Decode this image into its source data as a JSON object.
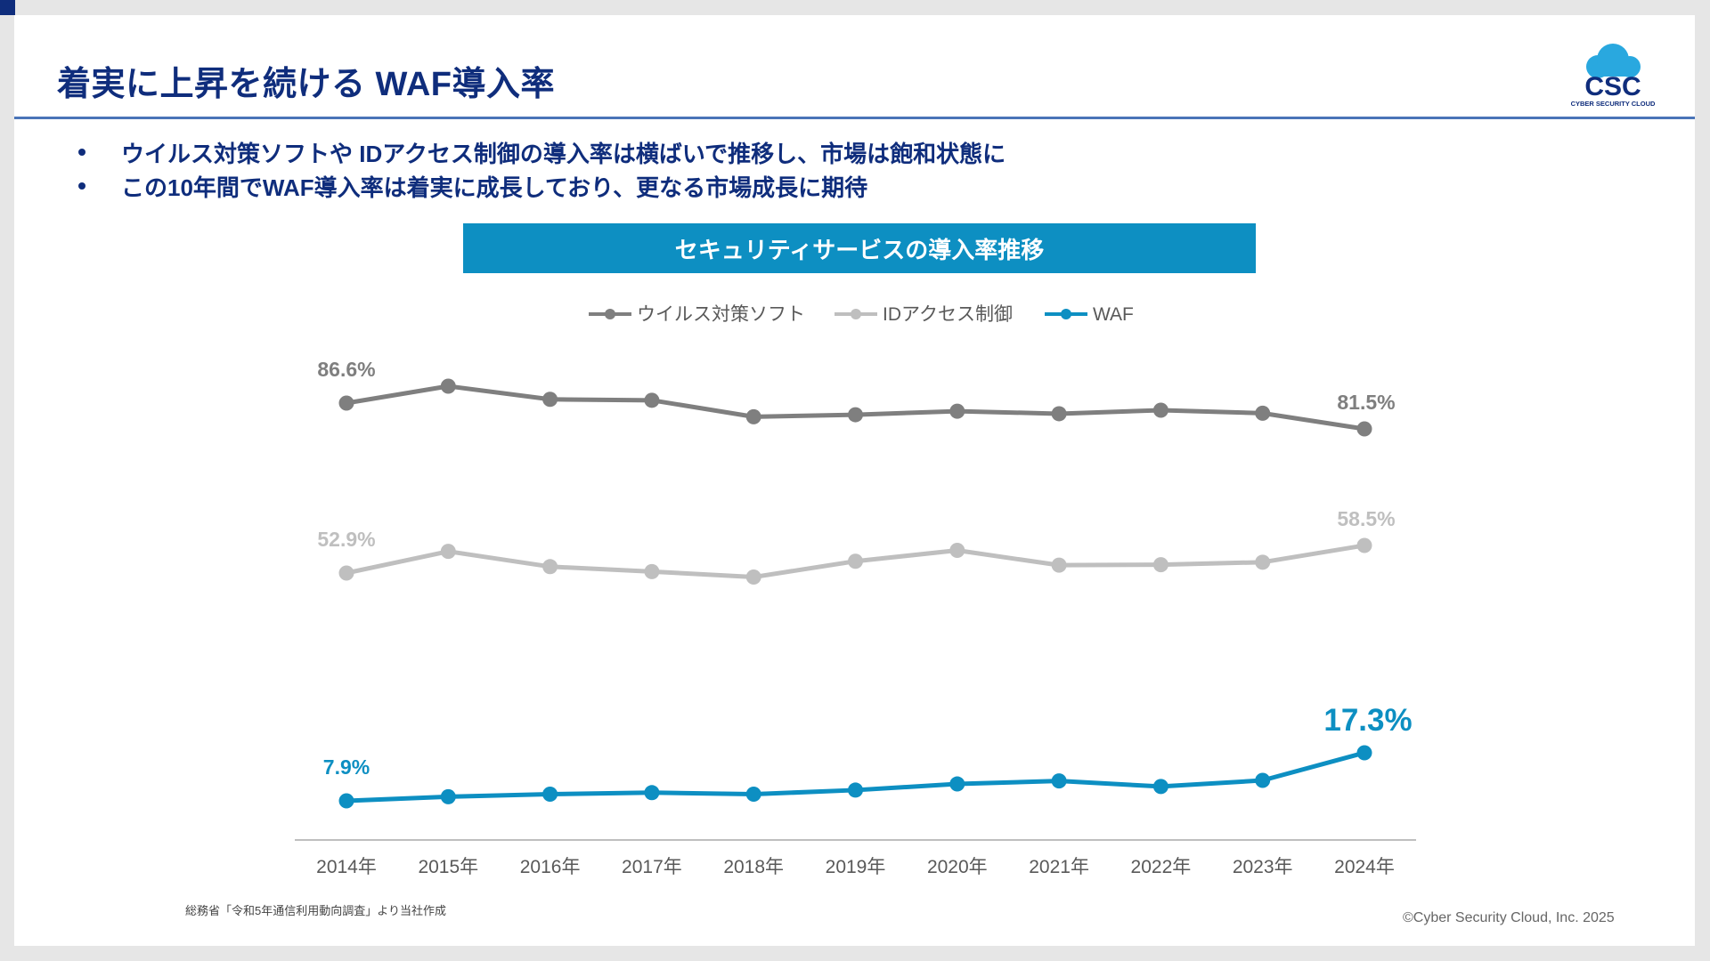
{
  "slide": {
    "title": "着実に上昇を続ける WAF導入率",
    "bullets": [
      "ウイルス対策ソフトや IDアクセス制御の導入率は横ばいで推移し、市場は飽和状態に",
      "この10年間でWAF導入率は着実に成長しており、更なる市場成長に期待"
    ],
    "logo": {
      "text": "CSC",
      "subtext": "CYBER SECURITY CLOUD"
    },
    "source_note": "総務省「令和5年通信利用動向調査」より当社作成",
    "copyright": "©Cyber Security Cloud, Inc. 2025",
    "colors": {
      "title": "#0f2d7c",
      "banner": "#0d8fc2",
      "rule": "#4a74b8"
    }
  },
  "chart_data": {
    "type": "line",
    "title": "セキュリティサービスの導入率推移",
    "categories": [
      "2014年",
      "2015年",
      "2016年",
      "2017年",
      "2018年",
      "2019年",
      "2020年",
      "2021年",
      "2022年",
      "2023年",
      "2024年"
    ],
    "series": [
      {
        "name": "ウイルス対策ソフト",
        "color": "#7f7f7f",
        "values": [
          86.6,
          88.4,
          87.0,
          86.9,
          83.9,
          84.3,
          85.0,
          84.5,
          85.2,
          84.6,
          81.5
        ],
        "labels": {
          "first": "86.6%",
          "last": "81.5%"
        }
      },
      {
        "name": "IDアクセス制御",
        "color": "#bfbfbf",
        "values": [
          52.9,
          57.3,
          54.2,
          53.2,
          52.1,
          55.3,
          57.5,
          54.5,
          54.6,
          55.1,
          58.5
        ],
        "labels": {
          "first": "52.9%",
          "last": "58.5%"
        }
      },
      {
        "name": "WAF",
        "color": "#0d8fc2",
        "values": [
          7.9,
          8.7,
          9.2,
          9.5,
          9.2,
          10.0,
          11.2,
          11.8,
          10.7,
          11.9,
          17.3
        ],
        "labels": {
          "first": "7.9%",
          "last": "17.3%"
        }
      }
    ],
    "legend_position": "top",
    "grid": false
  }
}
